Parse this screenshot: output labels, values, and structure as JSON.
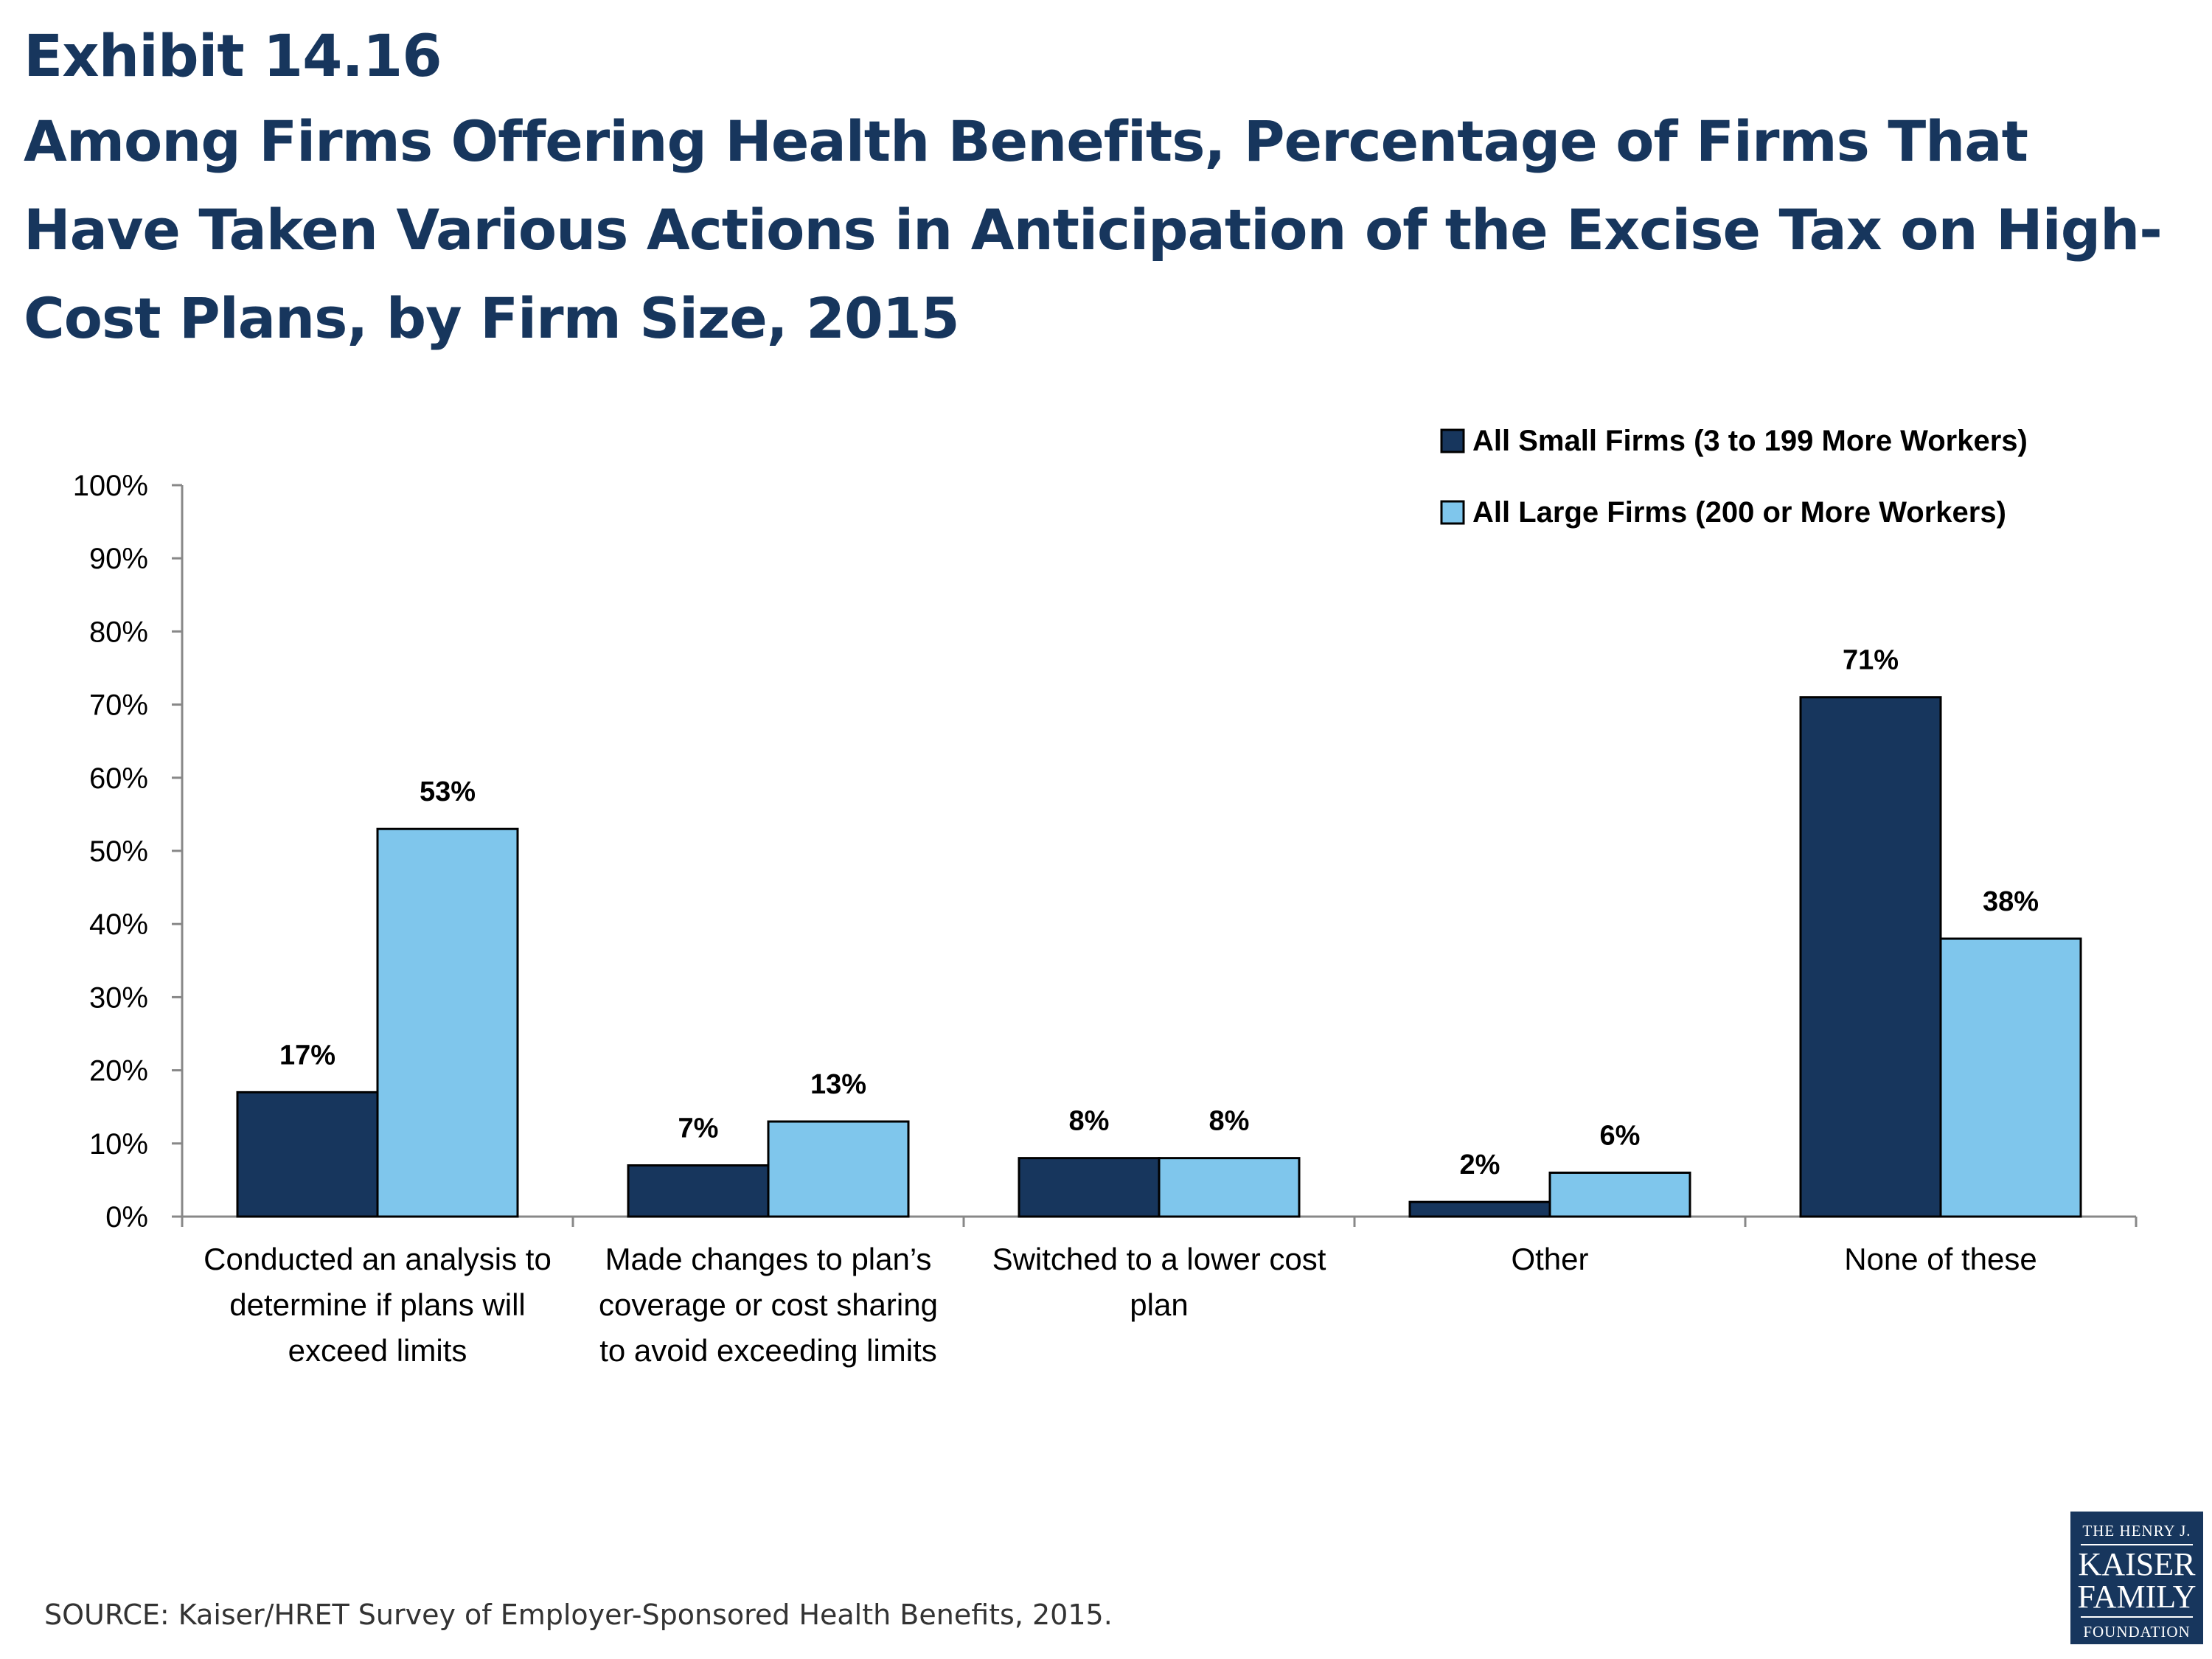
{
  "header": {
    "exhibit": "Exhibit 14.16",
    "title_lines": [
      "Among Firms Offering Health Benefits, Percentage of Firms That",
      "Have Taken Various Actions in Anticipation of the Excise Tax on High-",
      "Cost Plans, by Firm Size, 2015"
    ]
  },
  "chart_data": {
    "type": "bar",
    "title": "Among Firms Offering Health Benefits, Percentage of Firms That Have Taken Various Actions in Anticipation of the Excise Tax on High-Cost Plans, by Firm Size, 2015",
    "categories": [
      [
        "Conducted an analysis to",
        "determine if plans will",
        "exceed limits"
      ],
      [
        "Made changes to plan’s",
        "coverage or cost sharing",
        "to avoid exceeding limits"
      ],
      [
        "Switched to a lower cost",
        "plan"
      ],
      [
        "Other"
      ],
      [
        "None of these"
      ]
    ],
    "series": [
      {
        "name": "All Small Firms (3 to 199 More Workers)",
        "color": "#17365d",
        "values": [
          17,
          7,
          8,
          2,
          71
        ],
        "labels": [
          "17%",
          "7%",
          "8%",
          "2%",
          "71%"
        ]
      },
      {
        "name": "All Large Firms (200 or More Workers)",
        "color": "#7fc6ec",
        "values": [
          53,
          13,
          8,
          6,
          38
        ],
        "labels": [
          "53%",
          "13%",
          "8%",
          "6%",
          "38%"
        ]
      }
    ],
    "ylim": [
      0,
      100
    ],
    "yticks": [
      0,
      10,
      20,
      30,
      40,
      50,
      60,
      70,
      80,
      90,
      100
    ],
    "ytick_labels": [
      "0%",
      "10%",
      "20%",
      "30%",
      "40%",
      "50%",
      "60%",
      "70%",
      "80%",
      "90%",
      "100%"
    ],
    "xlabel": "",
    "ylabel": "",
    "grid": false,
    "legend_position": "top-right"
  },
  "source": "SOURCE: Kaiser/HRET Survey of Employer-Sponsored Health Benefits, 2015.",
  "logo": {
    "line1": "THE HENRY J.",
    "line2": "KAISER",
    "line3": "FAMILY",
    "line4": "FOUNDATION"
  }
}
